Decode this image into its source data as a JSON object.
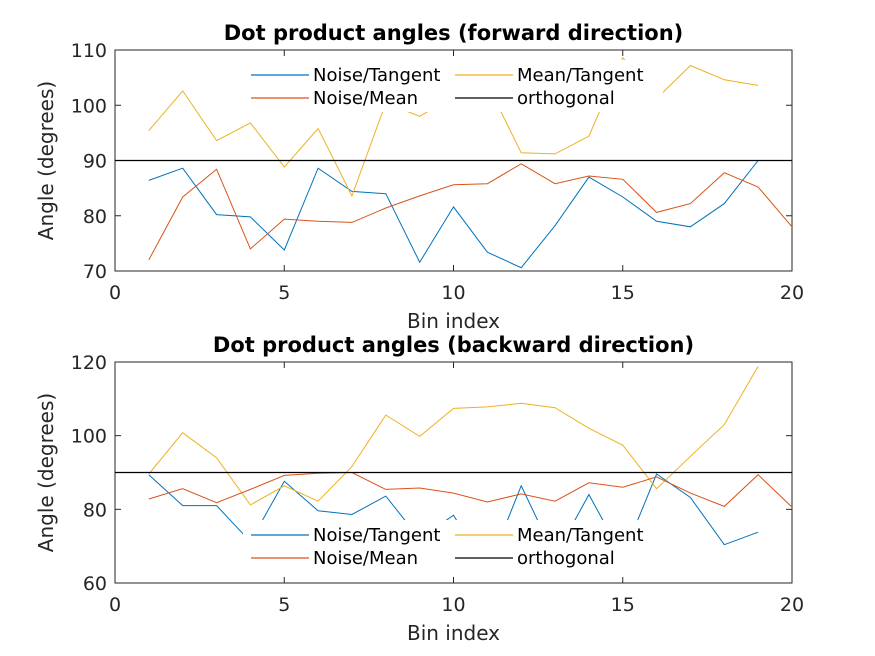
{
  "chart_data": [
    {
      "type": "line",
      "title": "Dot product angles (forward direction)",
      "xlabel": "Bin index",
      "ylabel": "Angle (degrees)",
      "xlim": [
        0,
        20
      ],
      "ylim": [
        70,
        110
      ],
      "xticks": [
        "0",
        "5",
        "10",
        "15",
        "20"
      ],
      "yticks": [
        "70",
        "80",
        "90",
        "100",
        "110"
      ],
      "grid": false,
      "legend_location": "top-center",
      "series": [
        {
          "name": "Noise/Tangent",
          "color": "#0072BD",
          "x": [
            1,
            2,
            3,
            4,
            5,
            6,
            7,
            8,
            9,
            10,
            11,
            12,
            13,
            14,
            15,
            16,
            17,
            18,
            19
          ],
          "y": [
            86.4,
            88.6,
            80.2,
            79.8,
            73.8,
            88.6,
            84.4,
            84.0,
            71.6,
            81.6,
            73.4,
            70.6,
            78.2,
            87.0,
            83.4,
            79.0,
            78.0,
            82.2,
            90.0
          ]
        },
        {
          "name": "Mean/Tangent",
          "color": "#EDB120",
          "x": [
            1,
            2,
            3,
            4,
            5,
            6,
            7,
            8,
            9,
            10,
            11,
            12,
            13,
            14,
            15,
            16,
            17,
            18,
            19
          ],
          "y": [
            95.4,
            102.6,
            93.6,
            96.8,
            88.8,
            95.8,
            83.6,
            100.4,
            98.0,
            101.6,
            103.8,
            91.4,
            91.2,
            94.4,
            108.6,
            101.2,
            107.2,
            104.6,
            103.6
          ]
        },
        {
          "name": "Noise/Mean",
          "color": "#D95319",
          "x": [
            1,
            2,
            3,
            4,
            5,
            6,
            7,
            8,
            9,
            10,
            11,
            12,
            13,
            14,
            15,
            16,
            17,
            18,
            19,
            20
          ],
          "y": [
            72.0,
            83.4,
            88.4,
            74.0,
            79.4,
            79.0,
            78.8,
            81.4,
            83.6,
            85.6,
            85.8,
            89.4,
            85.8,
            87.2,
            86.6,
            80.6,
            82.2,
            87.8,
            85.2,
            78.0
          ]
        },
        {
          "name": "orthogonal",
          "color": "#000000",
          "x": [
            0,
            20
          ],
          "y": [
            90,
            90
          ]
        }
      ]
    },
    {
      "type": "line",
      "title": "Dot product angles (backward direction)",
      "xlabel": "Bin index",
      "ylabel": "Angle (degrees)",
      "xlim": [
        0,
        20
      ],
      "ylim": [
        60,
        120
      ],
      "xticks": [
        "0",
        "5",
        "10",
        "15",
        "20"
      ],
      "yticks": [
        "60",
        "80",
        "100",
        "120"
      ],
      "grid": false,
      "legend_location": "bottom-center",
      "series": [
        {
          "name": "Noise/Tangent",
          "color": "#0072BD",
          "x": [
            1,
            2,
            3,
            4,
            5,
            6,
            7,
            8,
            9,
            10,
            11,
            12,
            13,
            14,
            15,
            16,
            17,
            18,
            19
          ],
          "y": [
            89.4,
            81.0,
            81.0,
            71.2,
            87.6,
            79.6,
            78.6,
            83.6,
            72.0,
            78.4,
            63.4,
            86.4,
            67.2,
            84.0,
            67.2,
            89.6,
            83.2,
            70.4,
            73.8
          ]
        },
        {
          "name": "Mean/Tangent",
          "color": "#EDB120",
          "x": [
            1,
            2,
            3,
            4,
            5,
            6,
            7,
            8,
            9,
            10,
            11,
            12,
            13,
            14,
            15,
            16,
            17,
            18,
            19
          ],
          "y": [
            89.6,
            100.8,
            94.0,
            81.2,
            86.4,
            82.2,
            91.6,
            105.6,
            99.8,
            107.4,
            107.8,
            108.8,
            107.6,
            102.0,
            97.4,
            85.6,
            94.4,
            103.0,
            118.8
          ]
        },
        {
          "name": "Noise/Mean",
          "color": "#D95319",
          "x": [
            1,
            2,
            3,
            4,
            5,
            6,
            7,
            8,
            9,
            10,
            11,
            12,
            13,
            14,
            15,
            16,
            17,
            18,
            19,
            20
          ],
          "y": [
            82.8,
            85.6,
            81.8,
            85.4,
            89.2,
            89.8,
            90.0,
            85.4,
            85.8,
            84.4,
            82.0,
            84.2,
            82.2,
            87.2,
            86.0,
            88.8,
            84.4,
            80.8,
            89.4,
            80.6
          ]
        },
        {
          "name": "orthogonal",
          "color": "#000000",
          "x": [
            0,
            20
          ],
          "y": [
            90,
            90
          ]
        }
      ]
    }
  ]
}
